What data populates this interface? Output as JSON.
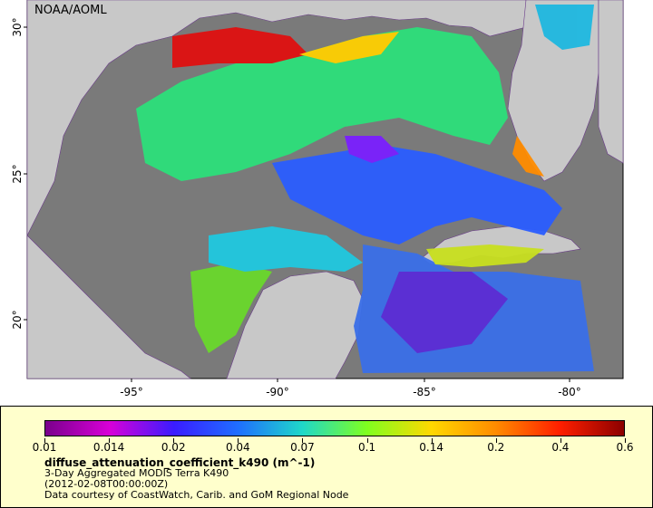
{
  "brand": "NOAA/AOML",
  "map": {
    "lon_labels": [
      "-95°",
      "-90°",
      "-85°",
      "-80°"
    ],
    "lat_labels": [
      "30°",
      "25°",
      "20°"
    ]
  },
  "colorbar": {
    "tick_labels": [
      "0.01",
      "0.014",
      "0.02",
      "0.04",
      "0.07",
      "0.1",
      "0.14",
      "0.2",
      "0.4",
      "0.6"
    ],
    "colors": [
      "#7a008c",
      "#d800d8",
      "#3a1cff",
      "#1f6fff",
      "#1fd8c8",
      "#7fff1f",
      "#ffd800",
      "#ff8c00",
      "#ff1f00",
      "#8c0000"
    ]
  },
  "legend": {
    "variable": "diffuse_attenuation_coefficient_k490 (m^-1)",
    "line1": "3-Day Aggregated MODIS Terra K490",
    "line2": "(2012-02-08T00:00:00Z)",
    "line3": "Data courtesy of CoastWatch, Carib. and GoM Regional Node"
  },
  "colors": {
    "land": "#c8c8c8",
    "no_data": "#7a7a7a",
    "legend_bg": "#ffffcc"
  }
}
